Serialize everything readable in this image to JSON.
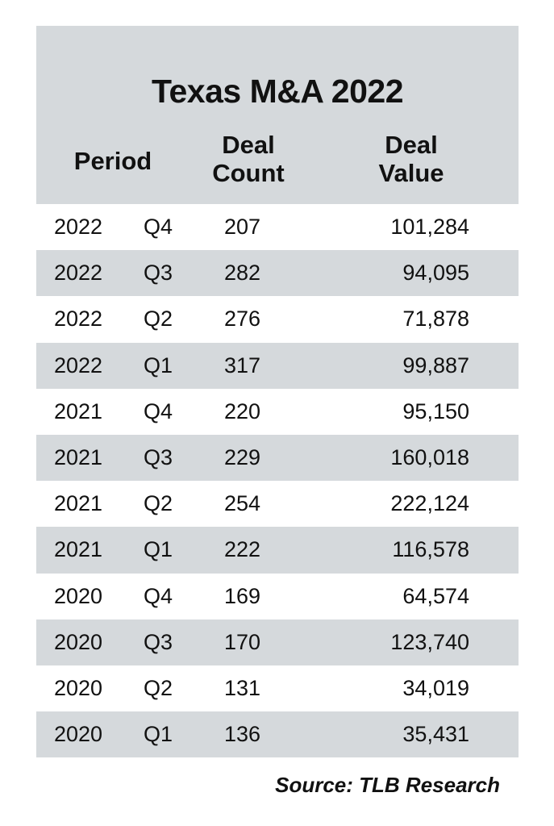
{
  "chart_data": {
    "type": "table",
    "title": "Texas M&A 2022",
    "columns": {
      "period": "Period",
      "count_line1": "Deal",
      "count_line2": "Count",
      "value_line1": "Deal",
      "value_line2": "Value"
    },
    "rows": [
      {
        "year": "2022",
        "quarter": "Q4",
        "count": "207",
        "value": "101,284"
      },
      {
        "year": "2022",
        "quarter": "Q3",
        "count": "282",
        "value": "94,095"
      },
      {
        "year": "2022",
        "quarter": "Q2",
        "count": "276",
        "value": "71,878"
      },
      {
        "year": "2022",
        "quarter": "Q1",
        "count": "317",
        "value": "99,887"
      },
      {
        "year": "2021",
        "quarter": "Q4",
        "count": "220",
        "value": "95,150"
      },
      {
        "year": "2021",
        "quarter": "Q3",
        "count": "229",
        "value": "160,018"
      },
      {
        "year": "2021",
        "quarter": "Q2",
        "count": "254",
        "value": "222,124"
      },
      {
        "year": "2021",
        "quarter": "Q1",
        "count": "222",
        "value": "116,578"
      },
      {
        "year": "2020",
        "quarter": "Q4",
        "count": "169",
        "value": "64,574"
      },
      {
        "year": "2020",
        "quarter": "Q3",
        "count": "170",
        "value": "123,740"
      },
      {
        "year": "2020",
        "quarter": "Q2",
        "count": "131",
        "value": "34,019"
      },
      {
        "year": "2020",
        "quarter": "Q1",
        "count": "136",
        "value": "35,431"
      }
    ],
    "source": "Source: TLB Research"
  },
  "colors": {
    "shade": "#d5d9dc",
    "background": "#ffffff",
    "text": "#111111"
  }
}
